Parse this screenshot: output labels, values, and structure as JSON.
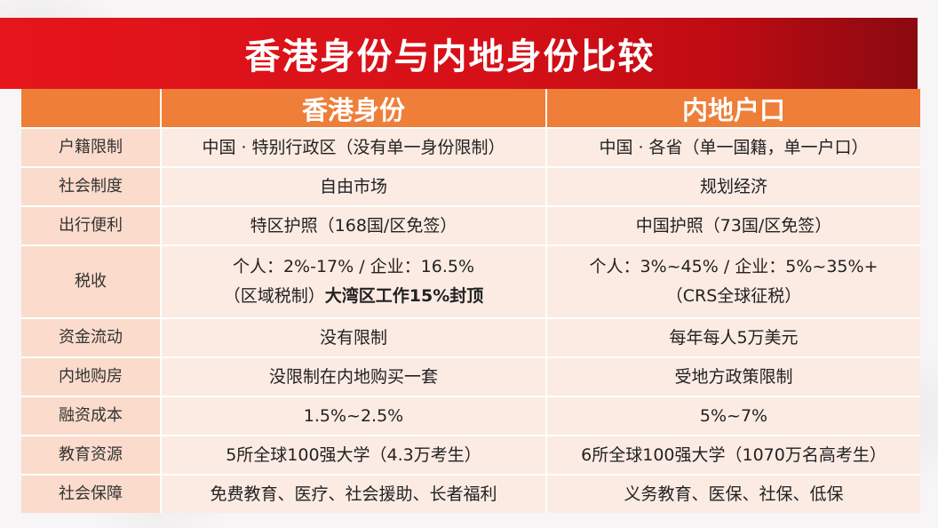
{
  "title": "香港身份与内地身份比较",
  "header": {
    "corner": "",
    "col_hk": "香港身份",
    "col_mainland": "内地户口"
  },
  "rows": [
    {
      "label": "户籍限制",
      "hk": "中国 · 特别行政区（没有单一身份限制）",
      "mainland": "中国 · 各省（单一国籍，单一户口）"
    },
    {
      "label": "社会制度",
      "hk": "自由市场",
      "mainland": "规划经济"
    },
    {
      "label": "出行便利",
      "hk": "特区护照（168国/区免签）",
      "mainland": "中国护照（73国/区免签）"
    },
    {
      "label": "税收",
      "hk_line1": "个人：2%-17%  /  企业：16.5%",
      "hk_line2_prefix": "（区域税制）",
      "hk_line2_bold": "大湾区工作15%封顶",
      "mainland_line1": "个人：3%~45%  /  企业：5%~35%+",
      "mainland_line2": "（CRS全球征税）"
    },
    {
      "label": "资金流动",
      "hk": "没有限制",
      "mainland": "每年每人5万美元"
    },
    {
      "label": "内地购房",
      "hk": "没限制在内地购买一套",
      "mainland": "受地方政策限制"
    },
    {
      "label": "融资成本",
      "hk": "1.5%~2.5%",
      "mainland": "5%~7%"
    },
    {
      "label": "教育资源",
      "hk": "5所全球100强大学（4.3万考生）",
      "mainland": "6所全球100强大学（1070万名高考生）"
    },
    {
      "label": "社会保障",
      "hk": "免费教育、医疗、社会援助、长者福利",
      "mainland": "义务教育、医保、社保、低保"
    }
  ]
}
